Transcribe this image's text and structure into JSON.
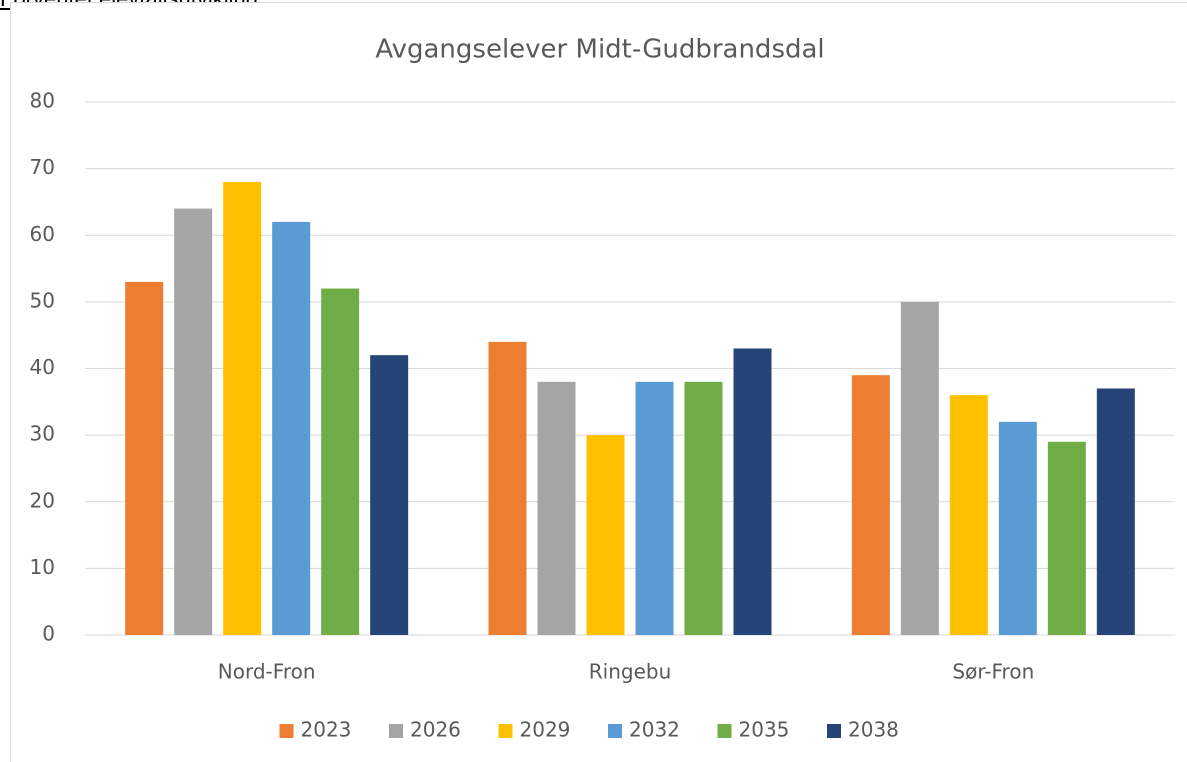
{
  "heading": "Forventet elevtallsutvikling",
  "chart_data": {
    "type": "bar",
    "title": "Avgangselever Midt-Gudbrandsdal",
    "categories": [
      "Nord-Fron",
      "Ringebu",
      "Sør-Fron"
    ],
    "series": [
      {
        "name": "2023",
        "color": "#ed7d31",
        "values": [
          53,
          44,
          39
        ]
      },
      {
        "name": "2026",
        "color": "#a5a5a5",
        "values": [
          64,
          38,
          50
        ]
      },
      {
        "name": "2029",
        "color": "#ffc000",
        "values": [
          68,
          30,
          36
        ]
      },
      {
        "name": "2032",
        "color": "#5b9bd5",
        "values": [
          62,
          38,
          32
        ]
      },
      {
        "name": "2035",
        "color": "#70ad47",
        "values": [
          52,
          38,
          29
        ]
      },
      {
        "name": "2038",
        "color": "#264478",
        "values": [
          42,
          43,
          37
        ]
      }
    ],
    "ylim": [
      0,
      80
    ],
    "yticks": [
      0,
      10,
      20,
      30,
      40,
      50,
      60,
      70,
      80
    ],
    "grid": true,
    "legend": "bottom"
  }
}
